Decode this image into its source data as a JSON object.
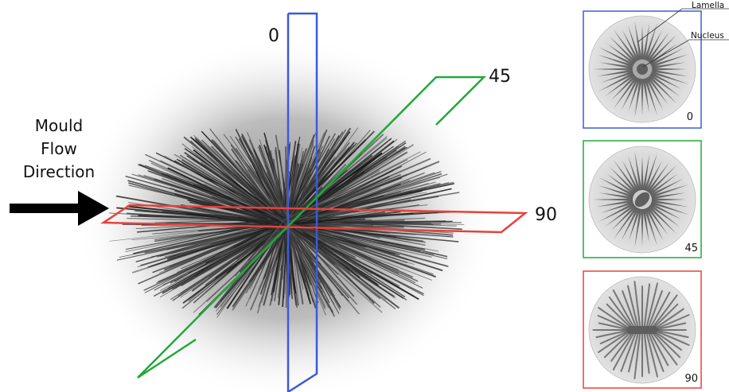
{
  "flow_label": [
    "Mould",
    "Flow",
    "Direction"
  ],
  "planes": [
    {
      "angle_label": "0",
      "color": "#3b5bdb"
    },
    {
      "angle_label": "45",
      "color": "#22a83a"
    },
    {
      "angle_label": "90",
      "color": "#e8413a"
    }
  ],
  "insets": [
    {
      "angle_label": "0",
      "color": "#3b5bdb",
      "orientation_deg": 0
    },
    {
      "angle_label": "45",
      "color": "#22a83a",
      "orientation_deg": 45
    },
    {
      "angle_label": "90",
      "color": "#e8413a",
      "orientation_deg": 90
    }
  ],
  "annotations": {
    "lamella": "Lamella",
    "nucleus": "Nucleus"
  },
  "colors": {
    "spikes": "#1c1c1c",
    "arrow": "#000000",
    "disc": "#d6d6d6",
    "spoke": "#555555",
    "nucleus": "#5e5e5e"
  }
}
